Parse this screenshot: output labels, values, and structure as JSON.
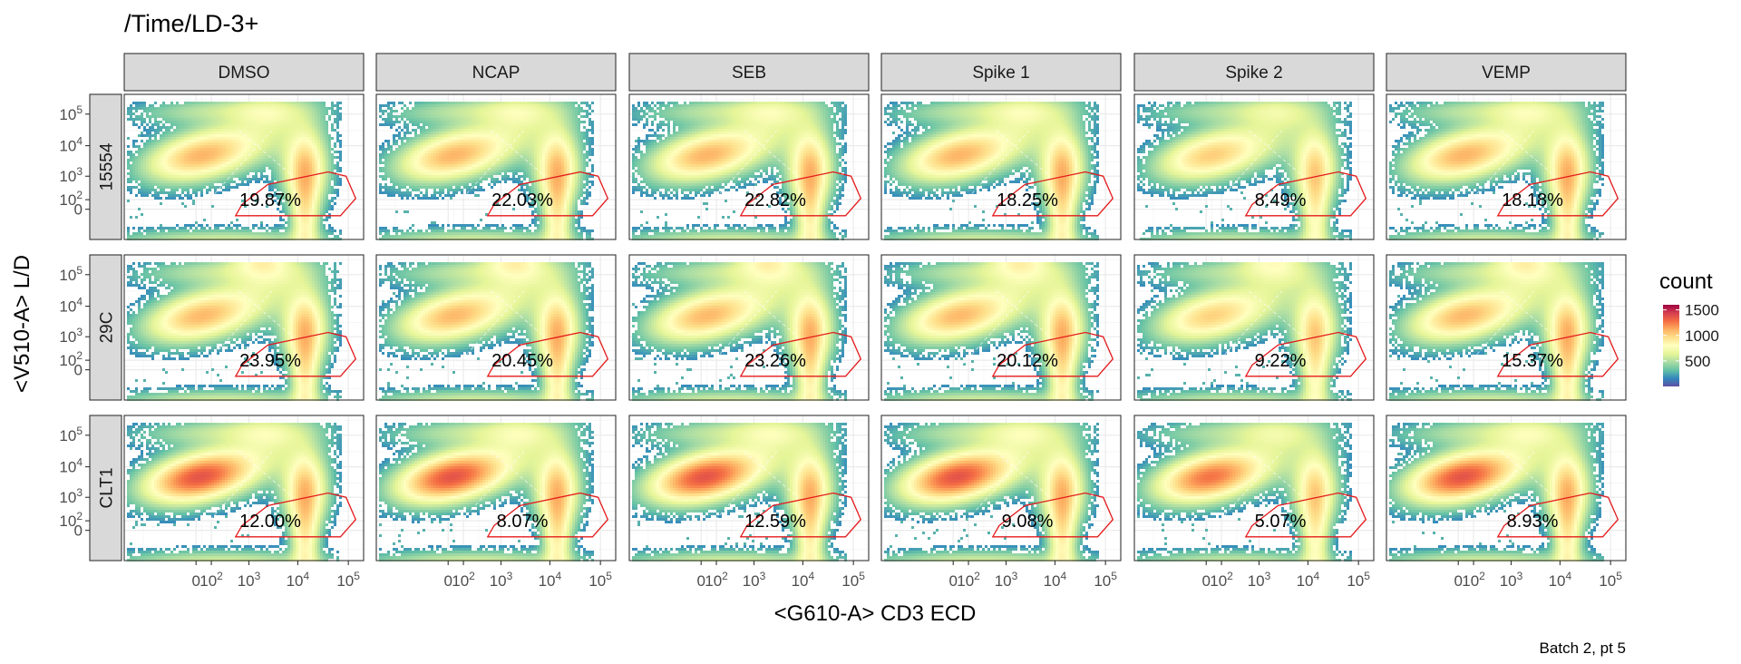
{
  "chart_data": {
    "type": "heatmap",
    "subtype": "faceted 2D density (flow cytometry bivariate histogram) with gate",
    "title": "/Time/LD-3+",
    "xlabel": "<G610-A> CD3 ECD",
    "ylabel": "<V510-A> L/D",
    "caption": "Batch 2, pt 5",
    "column_facets": [
      "DMSO",
      "NCAP",
      "SEB",
      "Spike 1",
      "Spike 2",
      "VEMP"
    ],
    "row_facets": [
      "15554",
      "29C",
      "CLT1"
    ],
    "x_scale": "biexponential",
    "y_scale": "biexponential",
    "x_ticks": [
      {
        "value": 0,
        "label": "0"
      },
      {
        "value": 100,
        "label": "10^2"
      },
      {
        "value": 1000,
        "label": "10^3"
      },
      {
        "value": 10000,
        "label": "10^4"
      },
      {
        "value": 100000,
        "label": "10^5"
      }
    ],
    "y_ticks": [
      {
        "value": 0,
        "label": "0"
      },
      {
        "value": 100,
        "label": "10^2"
      },
      {
        "value": 1000,
        "label": "10^3"
      },
      {
        "value": 10000,
        "label": "10^4"
      },
      {
        "value": 100000,
        "label": "10^5"
      }
    ],
    "gate_percentages": [
      [
        "19.87%",
        "22.03%",
        "22.82%",
        "18.25%",
        "8.49%",
        "18.18%"
      ],
      [
        "23.95%",
        "20.45%",
        "23.26%",
        "20.12%",
        "9.22%",
        "15.37%"
      ],
      [
        "12.00%",
        "8.07%",
        "12.59%",
        "9.08%",
        "5.07%",
        "8.93%"
      ]
    ],
    "legend": {
      "title": "count",
      "position": "right",
      "breaks": [
        "500",
        "1000",
        "1500"
      ],
      "range": [
        0,
        1600
      ],
      "palette": [
        "#5e4fa2",
        "#3288bd",
        "#66c2a5",
        "#abdda4",
        "#e6f598",
        "#ffffbf",
        "#fee08b",
        "#fdae61",
        "#f46d43",
        "#d53e4f",
        "#9e0142"
      ]
    },
    "gate_color": "#e41a1c",
    "grid": true
  }
}
